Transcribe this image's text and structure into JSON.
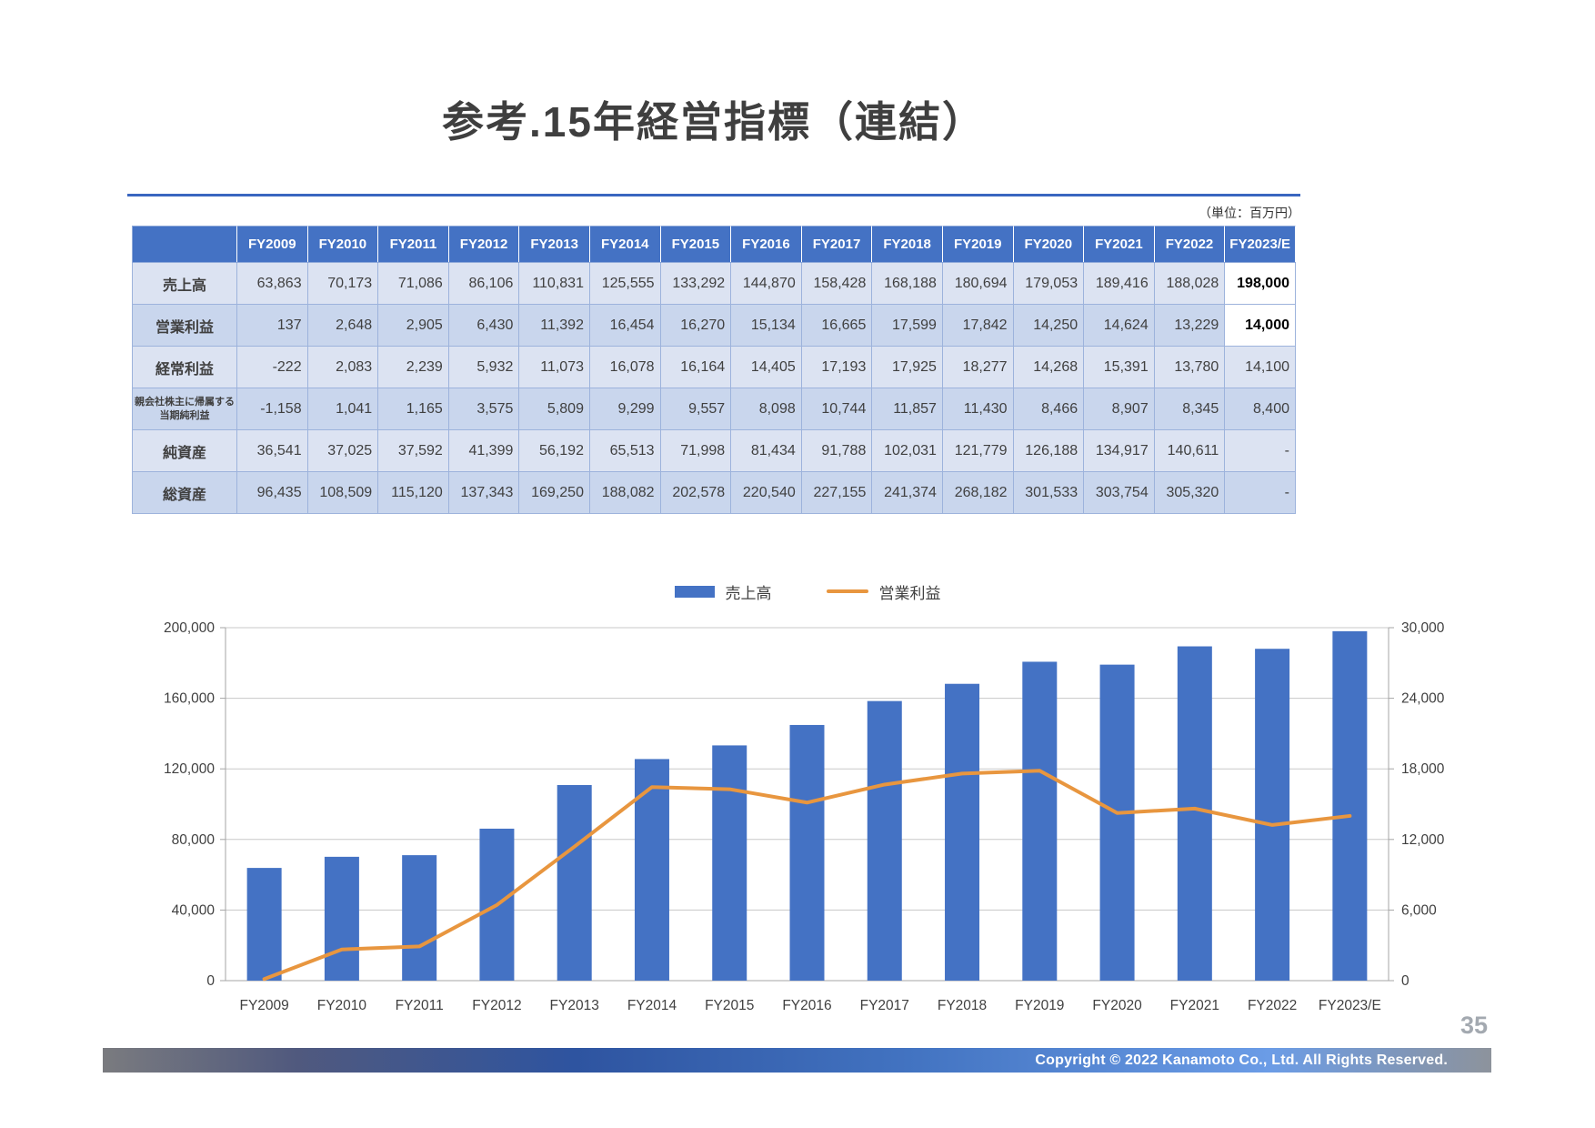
{
  "header": {
    "title": "参考.15年経営指標（連結）",
    "unit_note": "（単位：百万円）"
  },
  "table": {
    "columns": [
      "FY2009",
      "FY2010",
      "FY2011",
      "FY2012",
      "FY2013",
      "FY2014",
      "FY2015",
      "FY2016",
      "FY2017",
      "FY2018",
      "FY2019",
      "FY2020",
      "FY2021",
      "FY2022",
      "FY2023/E"
    ],
    "rows": [
      {
        "label": "売上高",
        "small": false,
        "highlight_last": true,
        "values": [
          "63,863",
          "70,173",
          "71,086",
          "86,106",
          "110,831",
          "125,555",
          "133,292",
          "144,870",
          "158,428",
          "168,188",
          "180,694",
          "179,053",
          "189,416",
          "188,028",
          "198,000"
        ]
      },
      {
        "label": "営業利益",
        "small": false,
        "highlight_last": true,
        "values": [
          "137",
          "2,648",
          "2,905",
          "6,430",
          "11,392",
          "16,454",
          "16,270",
          "15,134",
          "16,665",
          "17,599",
          "17,842",
          "14,250",
          "14,624",
          "13,229",
          "14,000"
        ]
      },
      {
        "label": "経常利益",
        "small": false,
        "highlight_last": false,
        "values": [
          "-222",
          "2,083",
          "2,239",
          "5,932",
          "11,073",
          "16,078",
          "16,164",
          "14,405",
          "17,193",
          "17,925",
          "18,277",
          "14,268",
          "15,391",
          "13,780",
          "14,100"
        ]
      },
      {
        "label": "親会社株主に帰属する当期純利益",
        "small": true,
        "highlight_last": false,
        "values": [
          "-1,158",
          "1,041",
          "1,165",
          "3,575",
          "5,809",
          "9,299",
          "9,557",
          "8,098",
          "10,744",
          "11,857",
          "11,430",
          "8,466",
          "8,907",
          "8,345",
          "8,400"
        ]
      },
      {
        "label": "純資産",
        "small": false,
        "highlight_last": false,
        "values": [
          "36,541",
          "37,025",
          "37,592",
          "41,399",
          "56,192",
          "65,513",
          "71,998",
          "81,434",
          "91,788",
          "102,031",
          "121,779",
          "126,188",
          "134,917",
          "140,611",
          "-"
        ]
      },
      {
        "label": "総資産",
        "small": false,
        "highlight_last": false,
        "values": [
          "96,435",
          "108,509",
          "115,120",
          "137,343",
          "169,250",
          "188,082",
          "202,578",
          "220,540",
          "227,155",
          "241,374",
          "268,182",
          "301,533",
          "303,754",
          "305,320",
          "-"
        ]
      }
    ]
  },
  "chart_data": {
    "type": "bar",
    "subtype": "bar-line-combo",
    "categories": [
      "FY2009",
      "FY2010",
      "FY2011",
      "FY2012",
      "FY2013",
      "FY2014",
      "FY2015",
      "FY2016",
      "FY2017",
      "FY2018",
      "FY2019",
      "FY2020",
      "FY2021",
      "FY2022",
      "FY2023/E"
    ],
    "series": [
      {
        "name": "売上高",
        "type": "bar",
        "axis": "left",
        "color": "#4472c4",
        "values": [
          63863,
          70173,
          71086,
          86106,
          110831,
          125555,
          133292,
          144870,
          158428,
          168188,
          180694,
          179053,
          189416,
          188028,
          198000
        ]
      },
      {
        "name": "営業利益",
        "type": "line",
        "axis": "right",
        "color": "#e8963f",
        "values": [
          137,
          2648,
          2905,
          6430,
          11392,
          16454,
          16270,
          15134,
          16665,
          17599,
          17842,
          14250,
          14624,
          13229,
          14000
        ]
      }
    ],
    "left_axis": {
      "min": 0,
      "max": 200000,
      "step": 40000,
      "tick_labels": [
        "0",
        "40,000",
        "80,000",
        "120,000",
        "160,000",
        "200,000"
      ]
    },
    "right_axis": {
      "min": 0,
      "max": 30000,
      "step": 6000,
      "tick_labels": [
        "0",
        "6,000",
        "12,000",
        "18,000",
        "24,000",
        "30,000"
      ]
    },
    "grid": true,
    "legend_position": "top-center"
  },
  "footer": {
    "page_number": "35",
    "copyright": "Copyright © 2022 Kanamoto Co., Ltd. All Rights Reserved."
  }
}
